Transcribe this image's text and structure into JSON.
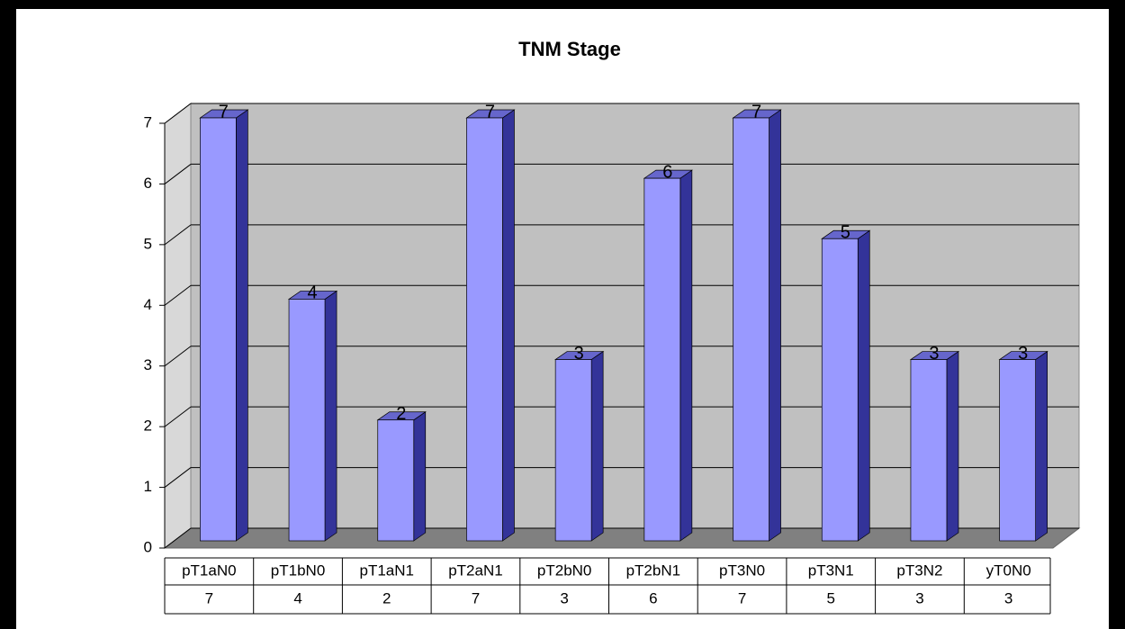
{
  "chart_data": {
    "type": "bar",
    "title": "TNM Stage",
    "categories": [
      "pT1aN0",
      "pT1bN0",
      "pT1aN1",
      "pT2aN1",
      "pT2bN0",
      "pT2bN1",
      "pT3N0",
      "pT3N1",
      "pT3N2",
      "yT0N0"
    ],
    "values": [
      7,
      4,
      2,
      7,
      3,
      6,
      7,
      5,
      3,
      3
    ],
    "color": "#9999ff",
    "ylim": [
      0,
      7
    ],
    "yticks": [
      0,
      1,
      2,
      3,
      4,
      5,
      6,
      7
    ],
    "grid": true
  }
}
